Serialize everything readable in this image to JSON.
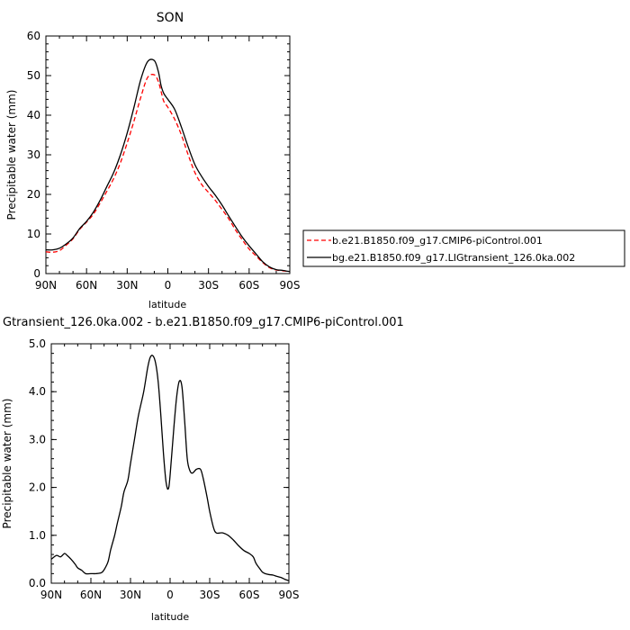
{
  "chart_data": [
    {
      "type": "line",
      "title": "SON",
      "xlabel": "latitude",
      "ylabel": "Precipitable water (mm)",
      "x_ticks": [
        "90N",
        "60N",
        "30N",
        "0",
        "30S",
        "60S",
        "90S"
      ],
      "x_tick_values": [
        90,
        60,
        30,
        0,
        -30,
        -60,
        -90
      ],
      "xlim": [
        90,
        -90
      ],
      "y_ticks": [
        "0",
        "10",
        "20",
        "30",
        "40",
        "50",
        "60"
      ],
      "y_tick_values": [
        0,
        10,
        20,
        30,
        40,
        50,
        60
      ],
      "ylim": [
        0,
        60
      ],
      "legend_position": "right",
      "series": [
        {
          "name": "b.e21.B1850.f09_g17.CMIP6-piControl.001",
          "color": "#ff0000",
          "dash": "dashed",
          "x": [
            90,
            85,
            80,
            75,
            70,
            65,
            60,
            55,
            50,
            45,
            40,
            35,
            30,
            25,
            20,
            15,
            10,
            7,
            5,
            3,
            0,
            -5,
            -10,
            -15,
            -20,
            -25,
            -30,
            -35,
            -40,
            -45,
            -50,
            -55,
            -60,
            -65,
            -70,
            -75,
            -80,
            -85,
            -90
          ],
          "y": [
            5.5,
            5.4,
            5.8,
            7.2,
            8.8,
            11.2,
            13.0,
            15.0,
            17.8,
            20.8,
            24.0,
            28.0,
            33.0,
            38.5,
            44.5,
            49.5,
            50.2,
            48.5,
            46.0,
            43.5,
            42.0,
            39.0,
            35.0,
            30.0,
            25.5,
            22.5,
            20.5,
            18.5,
            16.2,
            13.8,
            11.0,
            8.5,
            6.2,
            4.5,
            2.8,
            1.5,
            0.9,
            0.7,
            0.5
          ]
        },
        {
          "name": "bg.e21.B1850.f09_g17.LIGtransient_126.0ka.002",
          "color": "#000000",
          "dash": "solid",
          "x": [
            90,
            85,
            80,
            75,
            70,
            65,
            60,
            55,
            50,
            45,
            40,
            35,
            30,
            25,
            20,
            15,
            10,
            7,
            5,
            3,
            0,
            -5,
            -10,
            -15,
            -20,
            -25,
            -30,
            -35,
            -40,
            -45,
            -50,
            -55,
            -60,
            -65,
            -70,
            -75,
            -80,
            -85,
            -90
          ],
          "y": [
            6.0,
            6.0,
            6.4,
            7.5,
            9.0,
            11.4,
            13.2,
            15.5,
            18.5,
            22.0,
            25.5,
            30.0,
            35.5,
            42.0,
            49.0,
            53.5,
            53.8,
            51.0,
            47.5,
            45.5,
            44.0,
            41.5,
            37.0,
            32.0,
            27.5,
            24.5,
            22.0,
            19.8,
            17.3,
            14.5,
            11.8,
            9.2,
            7.0,
            5.0,
            3.0,
            1.7,
            1.0,
            0.8,
            0.5
          ]
        }
      ]
    },
    {
      "type": "line",
      "title": "Gtransient_126.0ka.002 - b.e21.B1850.f09_g17.CMIP6-piControl.001",
      "xlabel": "latitude",
      "ylabel": "Precipitable water (mm)",
      "x_ticks": [
        "90N",
        "60N",
        "30N",
        "0",
        "30S",
        "60S",
        "90S"
      ],
      "x_tick_values": [
        90,
        60,
        30,
        0,
        -30,
        -60,
        -90
      ],
      "xlim": [
        90,
        -90
      ],
      "y_ticks": [
        "0.0",
        "1.0",
        "2.0",
        "3.0",
        "4.0",
        "5.0"
      ],
      "y_tick_values": [
        0,
        1,
        2,
        3,
        4,
        5
      ],
      "ylim": [
        0,
        5
      ],
      "series": [
        {
          "color": "#000000",
          "dash": "solid",
          "x": [
            90,
            86,
            83,
            80,
            78,
            75,
            72,
            70,
            67,
            64,
            60,
            56,
            52,
            50,
            47,
            45,
            42,
            40,
            37,
            35,
            32,
            30,
            27,
            24,
            20,
            17,
            15,
            13,
            11,
            9,
            7,
            5,
            3,
            1,
            -1,
            -3,
            -5,
            -7,
            -9,
            -11,
            -13,
            -15,
            -17,
            -20,
            -23,
            -25,
            -28,
            -30,
            -33,
            -35,
            -38,
            -40,
            -44,
            -48,
            -52,
            -56,
            -60,
            -63,
            -65,
            -68,
            -70,
            -72,
            -75,
            -78,
            -80,
            -84,
            -87,
            -90
          ],
          "y": [
            0.5,
            0.58,
            0.55,
            0.62,
            0.58,
            0.5,
            0.4,
            0.32,
            0.27,
            0.2,
            0.2,
            0.2,
            0.22,
            0.28,
            0.45,
            0.7,
            1.0,
            1.25,
            1.6,
            1.9,
            2.15,
            2.5,
            3.0,
            3.5,
            4.0,
            4.5,
            4.72,
            4.75,
            4.6,
            4.2,
            3.5,
            2.7,
            2.1,
            2.0,
            2.6,
            3.3,
            3.9,
            4.22,
            4.1,
            3.4,
            2.6,
            2.35,
            2.3,
            2.38,
            2.38,
            2.2,
            1.8,
            1.5,
            1.15,
            1.05,
            1.05,
            1.05,
            1.0,
            0.9,
            0.78,
            0.68,
            0.62,
            0.55,
            0.42,
            0.3,
            0.23,
            0.2,
            0.18,
            0.17,
            0.15,
            0.12,
            0.08,
            0.05
          ]
        }
      ]
    }
  ]
}
